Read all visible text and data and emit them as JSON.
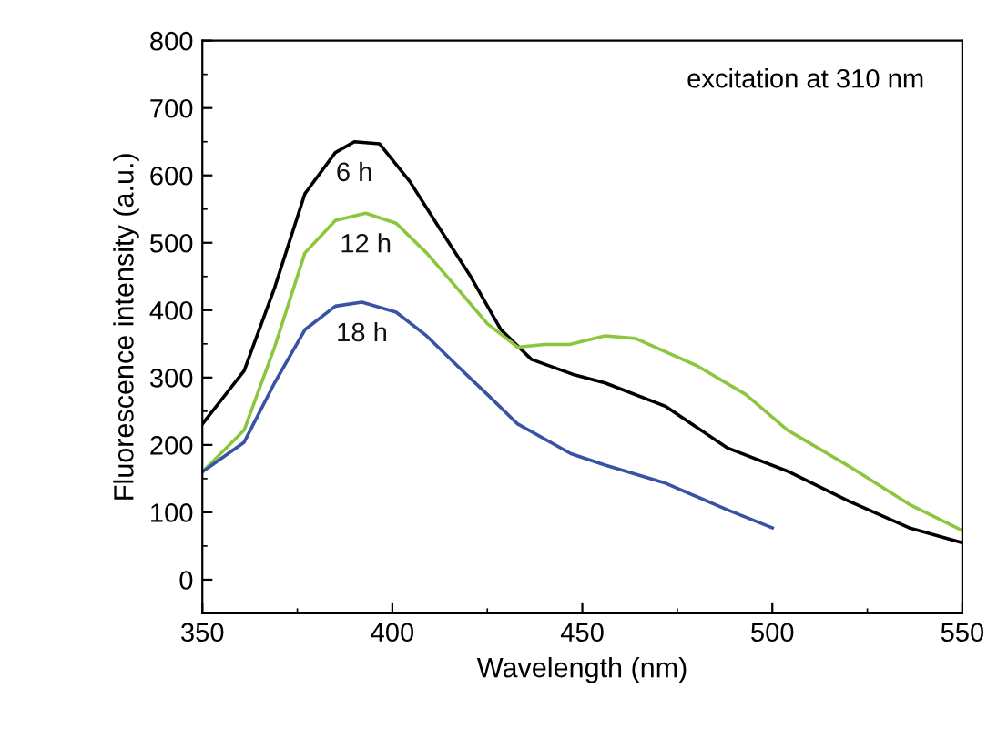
{
  "chart_data": {
    "type": "line",
    "xlabel": "Wavelength (nm)",
    "ylabel": "Fluorescence intensity (a.u.)",
    "annotations": [
      "excitation at 310 nm"
    ],
    "xlim": [
      350,
      550
    ],
    "xticks": [
      350,
      400,
      450,
      500,
      550
    ],
    "ylim": [
      -50,
      800
    ],
    "yticks": [
      0,
      100,
      200,
      300,
      400,
      500,
      600,
      700,
      800
    ],
    "grid": false,
    "legend": false,
    "marker": "none",
    "line_style": "solid",
    "series": [
      {
        "name": "6 h",
        "color": "#000000",
        "x": [
          350,
          361,
          369,
          377,
          385,
          390,
          396.6,
          404.6,
          412.6,
          420.6,
          428.6,
          436.6,
          447.4,
          456,
          472,
          488,
          504,
          520,
          536,
          550
        ],
        "values": [
          231,
          310,
          433,
          573,
          634,
          650,
          647,
          591,
          520,
          450,
          371,
          327,
          305,
          292,
          257,
          196,
          161,
          117,
          77,
          55
        ]
      },
      {
        "name": "12 h",
        "color": "#8cc63f",
        "x": [
          350,
          361,
          369,
          377,
          385,
          393,
          401,
          409,
          417,
          425,
          433,
          440,
          446.6,
          456,
          464,
          480,
          493,
          504,
          520,
          536,
          550
        ],
        "values": [
          160,
          222,
          345,
          485,
          533,
          544,
          529,
          485,
          433,
          380,
          345,
          349,
          349,
          362,
          358,
          318,
          275,
          222,
          169,
          112,
          73
        ]
      },
      {
        "name": "18 h",
        "color": "#3953a4",
        "x": [
          350,
          361,
          369,
          377,
          385,
          392,
          401,
          409,
          417,
          425,
          433,
          447,
          456,
          472,
          488,
          500
        ],
        "values": [
          160,
          204,
          292,
          371,
          406,
          412,
          397,
          362,
          318,
          275,
          231,
          187,
          170,
          143,
          104,
          77
        ]
      }
    ]
  }
}
